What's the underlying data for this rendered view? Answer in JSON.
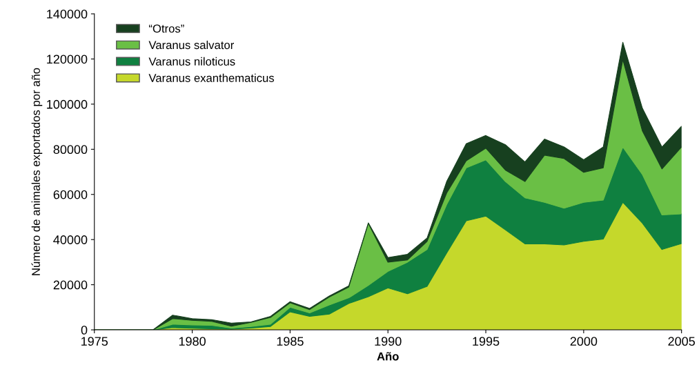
{
  "chart_data": {
    "type": "area",
    "stacked": true,
    "xlabel": "Año",
    "ylabel": "Número de animales exportados por año",
    "x": [
      1975,
      1976,
      1977,
      1978,
      1979,
      1980,
      1981,
      1982,
      1983,
      1984,
      1985,
      1986,
      1987,
      1988,
      1989,
      1990,
      1991,
      1992,
      1993,
      1994,
      1995,
      1996,
      1997,
      1998,
      1999,
      2000,
      2001,
      2002,
      2003,
      2004,
      2005
    ],
    "series": [
      {
        "name": "Varanus exanthematicus",
        "color": "#c5d82b",
        "values": [
          0,
          0,
          0,
          0,
          1000,
          700,
          500,
          300,
          800,
          1500,
          8000,
          6000,
          7000,
          11700,
          14700,
          18600,
          16000,
          19300,
          34000,
          48300,
          50400,
          44300,
          38100,
          38100,
          37600,
          39200,
          40200,
          56500,
          47300,
          35600,
          38200
        ]
      },
      {
        "name": "Varanus niloticus",
        "color": "#0f8040",
        "values": [
          0,
          0,
          0,
          0,
          1500,
          1500,
          1500,
          500,
          700,
          1000,
          2000,
          1500,
          4000,
          2500,
          5000,
          7300,
          14000,
          16300,
          21500,
          23500,
          24900,
          21400,
          20400,
          18400,
          16300,
          17300,
          17300,
          24500,
          21500,
          15300,
          13200
        ]
      },
      {
        "name": "Varanus salvator",
        "color": "#6abf45",
        "values": [
          0,
          0,
          0,
          0,
          2500,
          2000,
          1800,
          800,
          1800,
          3000,
          2000,
          1500,
          3500,
          4800,
          27500,
          4100,
          1000,
          3600,
          5100,
          3100,
          5200,
          5100,
          7200,
          20900,
          22000,
          13300,
          14300,
          38700,
          19300,
          20400,
          29600
        ]
      },
      {
        "name": "“Otros”",
        "color": "#17401f",
        "values": [
          0,
          0,
          0,
          0,
          1500,
          800,
          700,
          1400,
          200,
          500,
          500,
          500,
          500,
          500,
          200,
          2000,
          2500,
          1500,
          5100,
          7600,
          5600,
          11200,
          8700,
          7100,
          5100,
          5600,
          9200,
          7700,
          10100,
          9700,
          9200
        ]
      }
    ],
    "xlim": [
      1975,
      2005
    ],
    "xticks": [
      1975,
      1980,
      1985,
      1990,
      1995,
      2000,
      2005
    ],
    "ylim": [
      0,
      140000
    ],
    "yticks": [
      0,
      20000,
      40000,
      60000,
      80000,
      100000,
      120000,
      140000
    ],
    "grid": false,
    "legend": "top left"
  }
}
